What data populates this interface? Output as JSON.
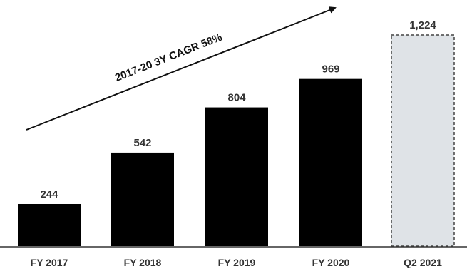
{
  "chart_data": {
    "type": "bar",
    "categories": [
      "FY 2017",
      "FY 2018",
      "FY 2019",
      "FY 2020",
      "Q2 2021"
    ],
    "values": [
      244,
      542,
      804,
      969,
      1224
    ],
    "value_labels": [
      "244",
      "542",
      "804",
      "969",
      "1,224"
    ],
    "bar_styles": [
      "solid",
      "solid",
      "solid",
      "solid",
      "dashed"
    ],
    "title": "",
    "xlabel": "",
    "ylabel": "",
    "ylim": [
      0,
      1250
    ],
    "grid": false,
    "legend": "none",
    "annotation": {
      "text": "2017-20 3Y CAGR 58%"
    },
    "colors": {
      "solid_bar": "#000000",
      "highlight_fill": "#dfe3e7",
      "highlight_stroke": "#444444",
      "baseline": "#333333",
      "arrow": "#111111"
    }
  }
}
